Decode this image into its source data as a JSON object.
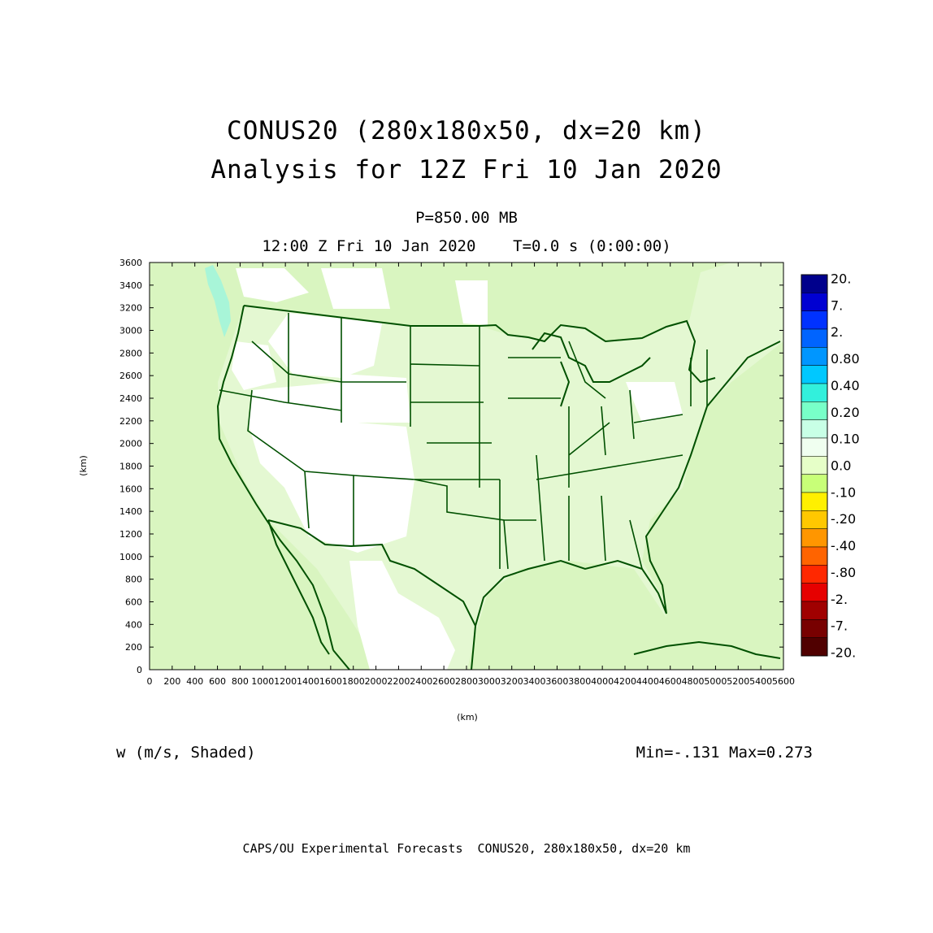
{
  "title": {
    "line1": "CONUS20 (280x180x50, dx=20 km)",
    "line2": "Analysis for 12Z Fri 10 Jan 2020"
  },
  "level_label": "P=850.00 MB",
  "time_label": "12:00 Z Fri 10 Jan 2020    T=0.0 s (0:00:00)",
  "variable_label": "w (m/s, Shaded)",
  "minmax_label": "Min=-.131 Max=0.273",
  "footer": "CAPS/OU Experimental Forecasts  CONUS20, 280x180x50, dx=20 km",
  "map": {
    "x_axis": {
      "label": "(km)",
      "min": 0,
      "max": 5600,
      "ticks": [
        "0",
        "200",
        "400",
        "600",
        "800",
        "1000",
        "1200",
        "1400",
        "1600",
        "1800",
        "2000",
        "2200",
        "2400",
        "2600",
        "2800",
        "3000",
        "3200",
        "3400",
        "3600",
        "3800",
        "4000",
        "4200",
        "4400",
        "4600",
        "4800",
        "5000",
        "5200",
        "5400",
        "5600"
      ]
    },
    "y_axis": {
      "label": "(km)",
      "min": 0,
      "max": 3600,
      "ticks": [
        "0",
        "200",
        "400",
        "600",
        "800",
        "1000",
        "1200",
        "1400",
        "1600",
        "1800",
        "2000",
        "2200",
        "2400",
        "2600",
        "2800",
        "3000",
        "3200",
        "3400",
        "3600"
      ]
    },
    "colors": {
      "background_field": "#d9f5c0",
      "land_field": "#e4f8d2",
      "near_zero": "#ffffff",
      "boundary": "#005000",
      "upslope": "#a8f5d8"
    }
  },
  "colorbar": {
    "labels": [
      "20.",
      "7.",
      "2.",
      "0.80",
      "0.40",
      "0.20",
      "0.10",
      "0.0",
      "-.10",
      "-.20",
      "-.40",
      "-.80",
      "-2.",
      "-7.",
      "-20."
    ],
    "colors": [
      "#00008c",
      "#0000d2",
      "#0032ff",
      "#0064ff",
      "#0096ff",
      "#00c8ff",
      "#32f0dc",
      "#78ffc8",
      "#c8ffe6",
      "#f0fff0",
      "#e6ffc8",
      "#c8ff78",
      "#fff000",
      "#ffc800",
      "#ff9600",
      "#ff6400",
      "#ff2800",
      "#e60000",
      "#a00000",
      "#780000",
      "#500000"
    ]
  }
}
